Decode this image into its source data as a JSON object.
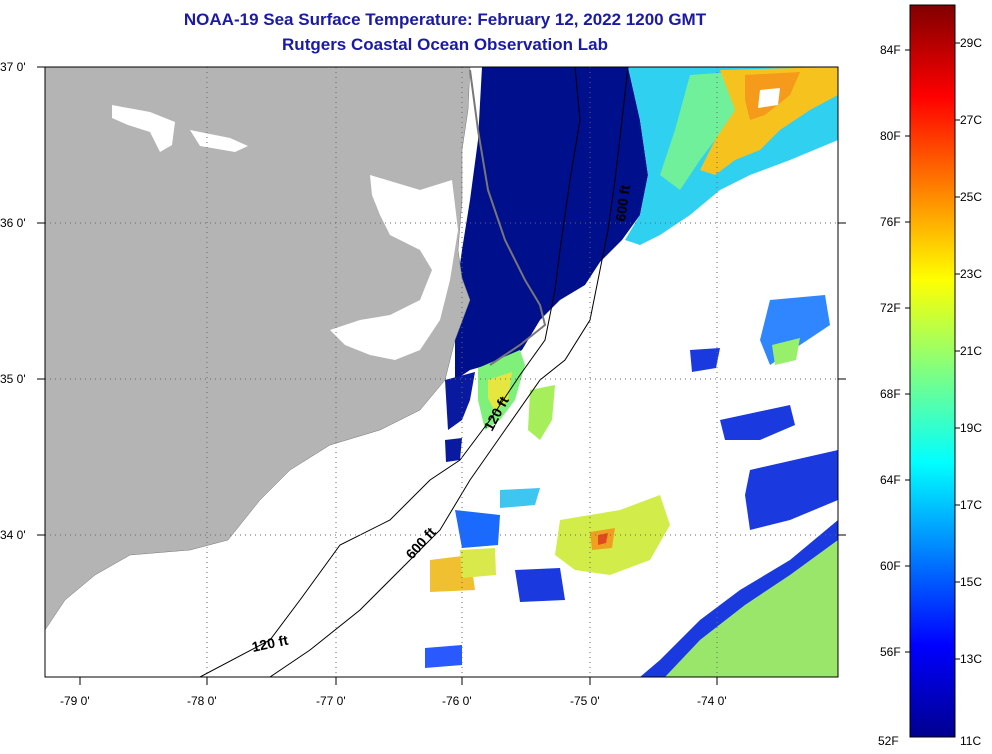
{
  "title": "NOAA-19 Sea Surface Temperature:  February 12, 2022 1200 GMT",
  "subtitle": "Rutgers Coastal Ocean Observation Lab",
  "map": {
    "lon_labels": [
      "-79 0'",
      "-78 0'",
      "-77 0'",
      "-76 0'",
      "-75 0'",
      "-74 0'"
    ],
    "lat_labels": [
      "37 0'",
      "36 0'",
      "35 0'",
      "34 0'"
    ],
    "contour_labels": {
      "label_600_north": "600 ft",
      "label_120_mid": "120 ft",
      "label_600_south": "600 ft",
      "label_120_south": "120 ft"
    },
    "colors": {
      "land": "#b4b4b4",
      "ocean_cloud": "#ffffff",
      "cold_water": "#000f8c"
    }
  },
  "colorbar": {
    "fahrenheit": [
      "84F",
      "80F",
      "76F",
      "72F",
      "68F",
      "64F",
      "60F",
      "56F",
      "52F"
    ],
    "celsius": [
      "29C",
      "27C",
      "25C",
      "23C",
      "21C",
      "19C",
      "17C",
      "15C",
      "13C",
      "11C"
    ],
    "range_c": [
      11,
      30
    ],
    "colormap": "jet"
  }
}
